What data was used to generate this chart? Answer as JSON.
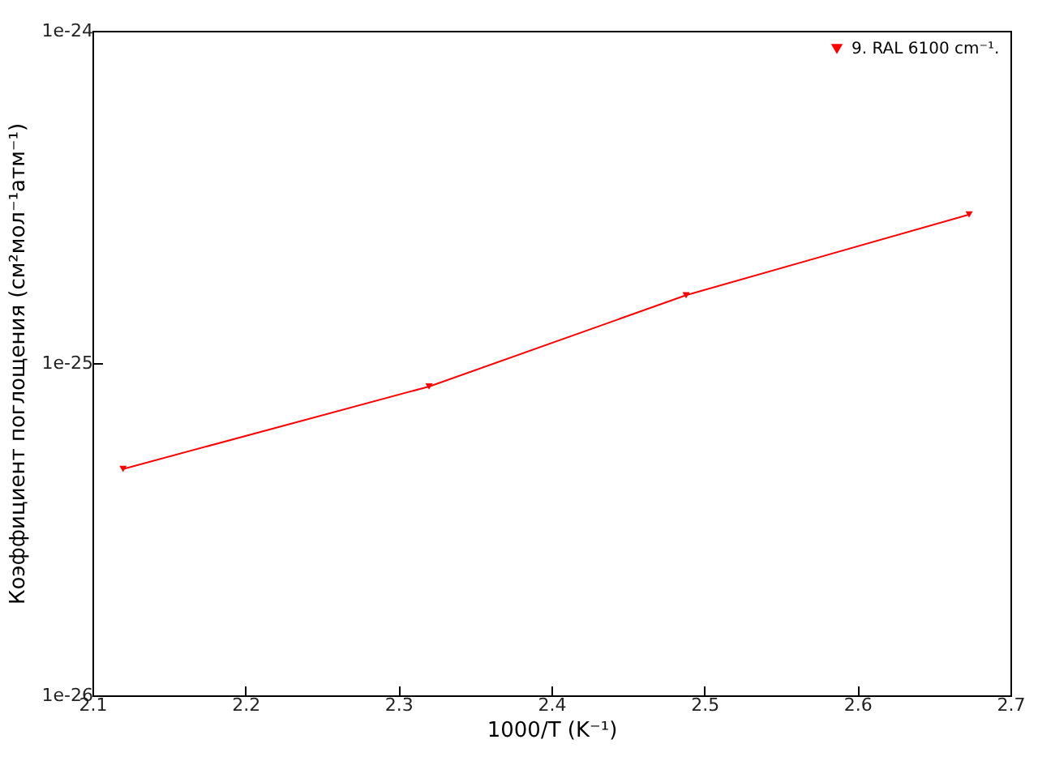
{
  "chart_data": {
    "type": "line",
    "xlabel": "1000/T (K⁻¹)",
    "ylabel": "Коэффициент поглощения (см²мол⁻¹атм⁻¹)",
    "x": [
      2.12,
      2.32,
      2.488,
      2.673
    ],
    "series": [
      {
        "name": "9. RAL 6100 cm⁻¹.",
        "color": "#ff0000",
        "values": [
          4.8e-26,
          8.5e-26,
          1.6e-25,
          2.8e-25
        ]
      }
    ],
    "xlim": [
      2.1,
      2.7
    ],
    "xticks": [
      2.1,
      2.2,
      2.3,
      2.4,
      2.5,
      2.6,
      2.7
    ],
    "ylim": [
      1e-26,
      1e-24
    ],
    "yticks": [
      {
        "value": 1e-26,
        "label": "1e-26"
      },
      {
        "value": 1e-25,
        "label": "1e-25"
      },
      {
        "value": 1e-24,
        "label": "1e-24"
      }
    ],
    "log": "y",
    "grid": false,
    "legend": "top right",
    "marker": "triangle",
    "line_style": "solid"
  }
}
